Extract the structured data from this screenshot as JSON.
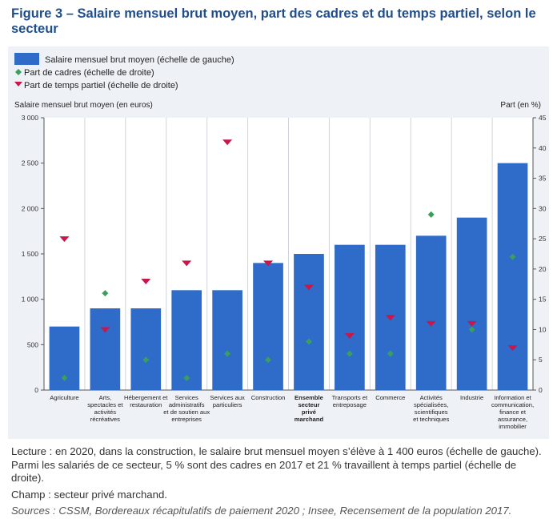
{
  "figure": {
    "title": "Figure 3 – Salaire mensuel brut moyen, part des cadres et du temps partiel, selon le secteur",
    "reading_note": "Lecture : en 2020, dans la construction, le salaire brut mensuel moyen s’élève à 1 400 euros (échelle de gauche). Parmi les salariés de ce secteur, 5 % sont des cadres en 2017 et 21 % travaillent à temps partiel (échelle de droite).",
    "scope_note": "Champ : secteur privé marchand.",
    "sources_note": "Sources : CSSM, Bordereaux récapitulatifs de paiement 2020 ; Insee, Recensement de la population 2017."
  },
  "chart_data": {
    "type": "bar",
    "title": "",
    "legend_placement": "top-left",
    "grid": "vertical",
    "ylabel_left": "Salaire mensuel brut moyen (en euros)",
    "ylabel_right": "Part (en %)",
    "ylim_left": [
      0,
      3000
    ],
    "ylim_right": [
      0,
      45
    ],
    "yticks_left": [
      "0",
      "500",
      "1 000",
      "1 500",
      "2 000",
      "2 500",
      "3 000"
    ],
    "yticks_right": [
      "0",
      "5",
      "10",
      "15",
      "20",
      "25",
      "30",
      "35",
      "40",
      "45"
    ],
    "categories": [
      {
        "label": [
          "Agriculture"
        ],
        "bold": false
      },
      {
        "label": [
          "Arts,",
          "spectacles et",
          "activités",
          "récréatives"
        ],
        "bold": false
      },
      {
        "label": [
          "Hébergement et",
          "restauration"
        ],
        "bold": false
      },
      {
        "label": [
          "Services",
          "administratifs",
          "et de soutien aux",
          "entreprises"
        ],
        "bold": false
      },
      {
        "label": [
          "Services aux",
          "particuliers"
        ],
        "bold": false
      },
      {
        "label": [
          "Construction"
        ],
        "bold": false
      },
      {
        "label": [
          "Ensemble",
          "secteur",
          "privé",
          "marchand"
        ],
        "bold": true
      },
      {
        "label": [
          "Transports et",
          "entreposage"
        ],
        "bold": false
      },
      {
        "label": [
          "Commerce"
        ],
        "bold": false
      },
      {
        "label": [
          "Activités",
          "spécialisées,",
          "scientifiques",
          "et techniques"
        ],
        "bold": false
      },
      {
        "label": [
          "Industrie"
        ],
        "bold": false
      },
      {
        "label": [
          "Information et",
          "communication,",
          "finance et",
          "assurance,",
          "immobilier"
        ],
        "bold": false
      }
    ],
    "series": [
      {
        "name": "Salaire mensuel brut moyen (échelle de gauche)",
        "kind": "bar",
        "axis": "left",
        "color": "#2f6bc9",
        "values": [
          700,
          900,
          900,
          1100,
          1100,
          1400,
          1500,
          1600,
          1600,
          1700,
          1900,
          2500
        ]
      },
      {
        "name": "Part de cadres (échelle de droite)",
        "kind": "diamond",
        "axis": "right",
        "color": "#3a9e5c",
        "values": [
          2,
          16,
          5,
          2,
          6,
          5,
          8,
          6,
          6,
          29,
          10,
          22
        ]
      },
      {
        "name": "Part de temps partiel (échelle de droite)",
        "kind": "triangle-down",
        "axis": "right",
        "color": "#c8174a",
        "values": [
          25,
          10,
          18,
          21,
          41,
          21,
          17,
          9,
          12,
          11,
          11,
          7
        ]
      }
    ]
  }
}
